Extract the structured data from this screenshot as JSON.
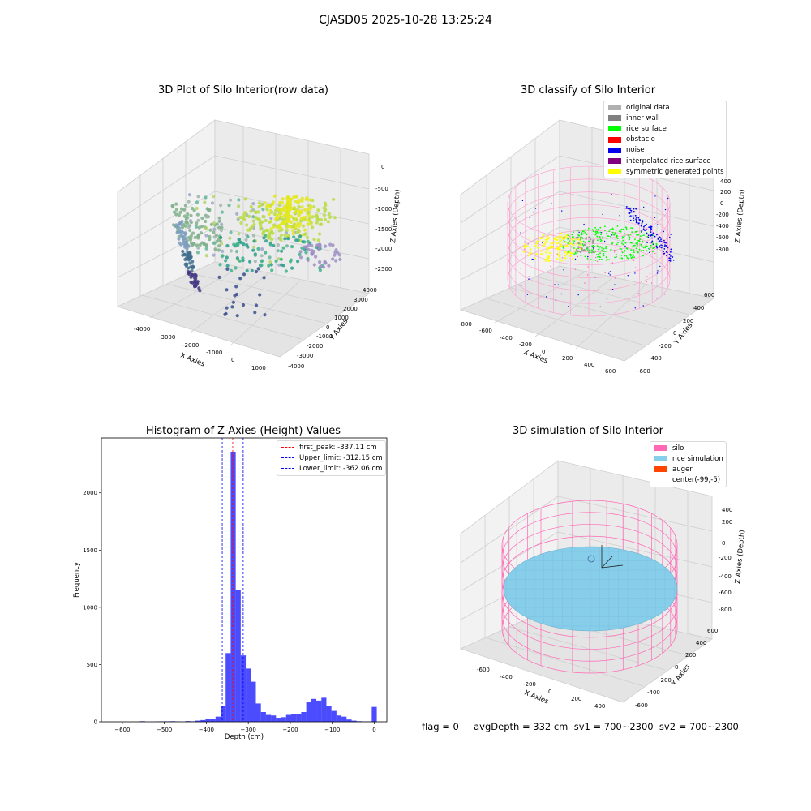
{
  "suptitle": "CJASD05 2025-10-28 13:25:24",
  "panels": {
    "raw": {
      "title": "3D Plot of Silo Interior(row data)",
      "xlabel": "X Axies",
      "ylabel": "Y Axies",
      "zlabel": "Z Axies (Depth)",
      "xticks": [
        "-4000",
        "-3000",
        "-2000",
        "-1000",
        "0",
        "1000"
      ],
      "yticks": [
        "4000",
        "3000",
        "2000",
        "1000",
        "0",
        "-1000",
        "-2000",
        "-3000",
        "-4000"
      ],
      "zticks": [
        "0",
        "-500",
        "-1000",
        "-1500",
        "-2000",
        "-2500"
      ]
    },
    "classify": {
      "title": "3D classify of Silo Interior",
      "xlabel": "X Axies",
      "ylabel": "Y Axies",
      "zlabel": "Z Axies (Depth)",
      "xticks": [
        "-800",
        "-600",
        "-400",
        "-200",
        "0",
        "200",
        "400",
        "600"
      ],
      "yticks": [
        "600",
        "400",
        "200",
        "0",
        "-200",
        "-400",
        "-600"
      ],
      "zticks": [
        "400",
        "200",
        "0",
        "-200",
        "-400",
        "-600",
        "-800"
      ],
      "legend": [
        {
          "label": "original data",
          "color": "#b0b0b0"
        },
        {
          "label": "inner wall",
          "color": "#808080"
        },
        {
          "label": "rice surface",
          "color": "#00ff00"
        },
        {
          "label": "obstacle",
          "color": "#ff0000"
        },
        {
          "label": "noise",
          "color": "#0000ee"
        },
        {
          "label": "interpolated rice surface",
          "color": "#800080"
        },
        {
          "label": "symmetric generated points",
          "color": "#ffff00"
        }
      ]
    },
    "simulation": {
      "title": "3D simulation of Silo Interior",
      "xlabel": "X Axies",
      "ylabel": "Y Axies",
      "zlabel": "Z Axies (Depth)",
      "xticks": [
        "-600",
        "-400",
        "-200",
        "0",
        "200",
        "400"
      ],
      "yticks": [
        "600",
        "400",
        "200",
        "0",
        "-200",
        "-400",
        "-600"
      ],
      "zticks": [
        "400",
        "200",
        "0",
        "-200",
        "-400",
        "-600",
        "-800"
      ],
      "legend": [
        {
          "label": "silo",
          "color": "#ff69b4"
        },
        {
          "label": "rice simulation",
          "color": "#87ceeb"
        },
        {
          "label": "auger",
          "color": "#ff4500"
        },
        {
          "label": "center(-99,-5)",
          "color": "#ffffff"
        }
      ]
    }
  },
  "status_line": "flag = 0     avgDepth = 332 cm  sv1 = 700~2300  sv2 = 700~2300",
  "chart_data": [
    {
      "type": "bar",
      "title": "Histogram of Z-Axies (Height) Values",
      "xlabel": "Depth (cm)",
      "ylabel": "Frequency",
      "xlim": [
        -650,
        30
      ],
      "ylim": [
        0,
        2480
      ],
      "xticks": [
        -600,
        -500,
        -400,
        -300,
        -200,
        -100,
        0
      ],
      "yticks": [
        0,
        500,
        1000,
        1500,
        2000
      ],
      "bar_color": "#0000ff",
      "bin_width": 12,
      "bins": [
        {
          "x": -552,
          "v": 5
        },
        {
          "x": -516,
          "v": 3
        },
        {
          "x": -504,
          "v": 4
        },
        {
          "x": -492,
          "v": 4
        },
        {
          "x": -480,
          "v": 5
        },
        {
          "x": -468,
          "v": 3
        },
        {
          "x": -444,
          "v": 6
        },
        {
          "x": -432,
          "v": 4
        },
        {
          "x": -420,
          "v": 10
        },
        {
          "x": -408,
          "v": 15
        },
        {
          "x": -396,
          "v": 22
        },
        {
          "x": -384,
          "v": 28
        },
        {
          "x": -372,
          "v": 45
        },
        {
          "x": -360,
          "v": 140
        },
        {
          "x": -348,
          "v": 600
        },
        {
          "x": -336,
          "v": 2360
        },
        {
          "x": -324,
          "v": 1150
        },
        {
          "x": -312,
          "v": 580
        },
        {
          "x": -300,
          "v": 465
        },
        {
          "x": -288,
          "v": 350
        },
        {
          "x": -276,
          "v": 160
        },
        {
          "x": -264,
          "v": 85
        },
        {
          "x": -252,
          "v": 60
        },
        {
          "x": -240,
          "v": 55
        },
        {
          "x": -228,
          "v": 35
        },
        {
          "x": -216,
          "v": 40
        },
        {
          "x": -204,
          "v": 60
        },
        {
          "x": -192,
          "v": 65
        },
        {
          "x": -180,
          "v": 70
        },
        {
          "x": -168,
          "v": 85
        },
        {
          "x": -156,
          "v": 170
        },
        {
          "x": -144,
          "v": 200
        },
        {
          "x": -132,
          "v": 185
        },
        {
          "x": -120,
          "v": 210
        },
        {
          "x": -108,
          "v": 140
        },
        {
          "x": -96,
          "v": 95
        },
        {
          "x": -84,
          "v": 55
        },
        {
          "x": -72,
          "v": 45
        },
        {
          "x": -60,
          "v": 20
        },
        {
          "x": -48,
          "v": 10
        },
        {
          "x": -36,
          "v": 5
        },
        {
          "x": -24,
          "v": 3
        },
        {
          "x": -12,
          "v": 3
        },
        {
          "x": 0,
          "v": 130
        }
      ],
      "vlines": [
        {
          "label": "first_peak: -337.11 cm",
          "x": -337.11,
          "color": "#ff0000"
        },
        {
          "label": "Upper_limit: -312.15 cm",
          "x": -312.15,
          "color": "#0000ff"
        },
        {
          "label": "Lower_limit: -362.06 cm",
          "x": -362.06,
          "color": "#0000ff"
        }
      ]
    }
  ]
}
